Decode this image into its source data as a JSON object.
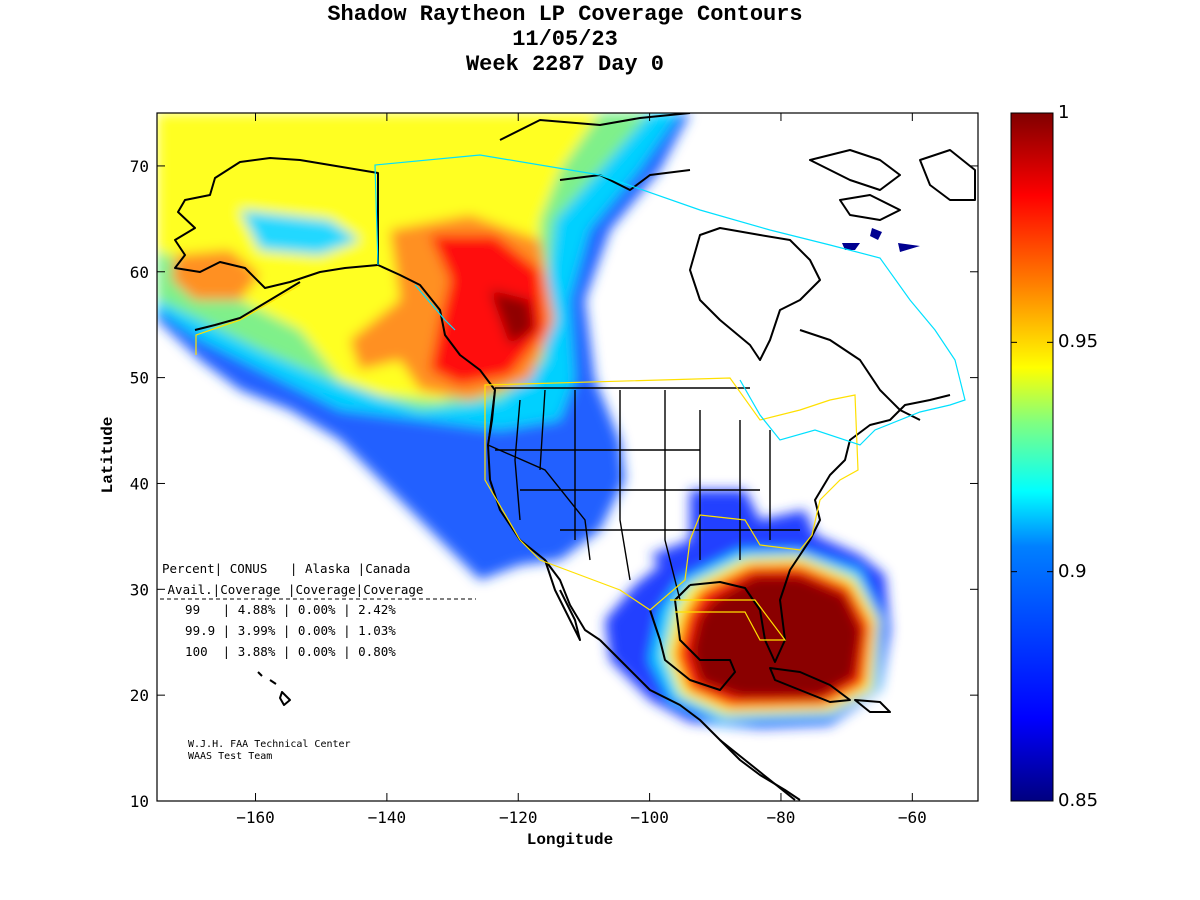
{
  "title": {
    "line1": "Shadow Raytheon LP Coverage Contours",
    "line2": "11/05/23",
    "line3": "Week 2287 Day 0"
  },
  "axes": {
    "xlabel": "Longitude",
    "ylabel": "Latitude",
    "xlim": [
      -175,
      -50
    ],
    "ylim": [
      10,
      75
    ],
    "xticks": [
      -160,
      -140,
      -120,
      -100,
      -80,
      -60
    ],
    "yticks": [
      10,
      20,
      30,
      40,
      50,
      60,
      70
    ]
  },
  "colorbar": {
    "min": 0.85,
    "max": 1,
    "labels": [
      "1",
      "0.95",
      "0.9",
      "0.85"
    ],
    "colors": [
      "#000080",
      "#0000ff",
      "#0080ff",
      "#00ffff",
      "#80ff80",
      "#ffff00",
      "#ff8000",
      "#ff0000",
      "#800000"
    ]
  },
  "stats_table": {
    "header1": "Percent| CONUS   | Alaska |Canada",
    "header2": " Avail.|Coverage |Coverage|Coverage",
    "rows": [
      "  99   | 4.88% | 0.00% | 2.42%",
      "  99.9 | 3.99% | 0.00% | 1.03%",
      "  100  | 3.88% | 0.00% | 0.80%"
    ]
  },
  "credit": {
    "line1": "W.J.H. FAA Technical Center",
    "line2": "WAAS Test Team"
  },
  "colors": {
    "service_boundary": "#ffff00",
    "canada_boundary": "#00e0ff",
    "coastline": "#000000"
  }
}
